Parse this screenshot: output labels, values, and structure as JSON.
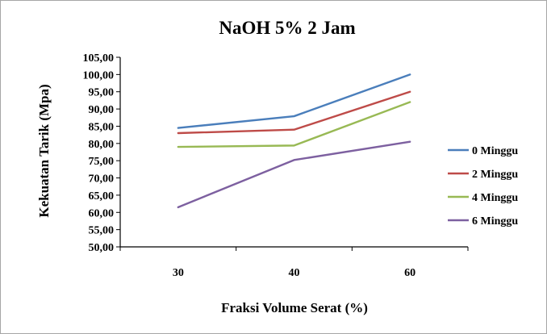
{
  "chart_data": {
    "type": "line",
    "title": "NaOH 5% 2 Jam",
    "xlabel": "Fraksi Volume Serat (%)",
    "ylabel": "Kekuatan Tarik (Mpa)",
    "categories": [
      "30",
      "40",
      "60"
    ],
    "ylim": [
      50,
      105
    ],
    "y_ticks": [
      "50,00",
      "55,00",
      "60,00",
      "65,00",
      "70,00",
      "75,00",
      "80,00",
      "85,00",
      "90,00",
      "95,00",
      "100,00",
      "105,00"
    ],
    "grid": false,
    "legend_position": "right",
    "series": [
      {
        "name": "0 Minggu",
        "color": "#4a7ebb",
        "values": [
          84.5,
          87.9,
          100.0
        ]
      },
      {
        "name": "2 Minggu",
        "color": "#be4b48",
        "values": [
          83.0,
          84.0,
          95.0
        ]
      },
      {
        "name": "4 Minggu",
        "color": "#98b954",
        "values": [
          79.0,
          79.4,
          92.0
        ]
      },
      {
        "name": "6 Minggu",
        "color": "#7d60a0",
        "values": [
          61.5,
          75.2,
          80.5
        ]
      }
    ]
  }
}
